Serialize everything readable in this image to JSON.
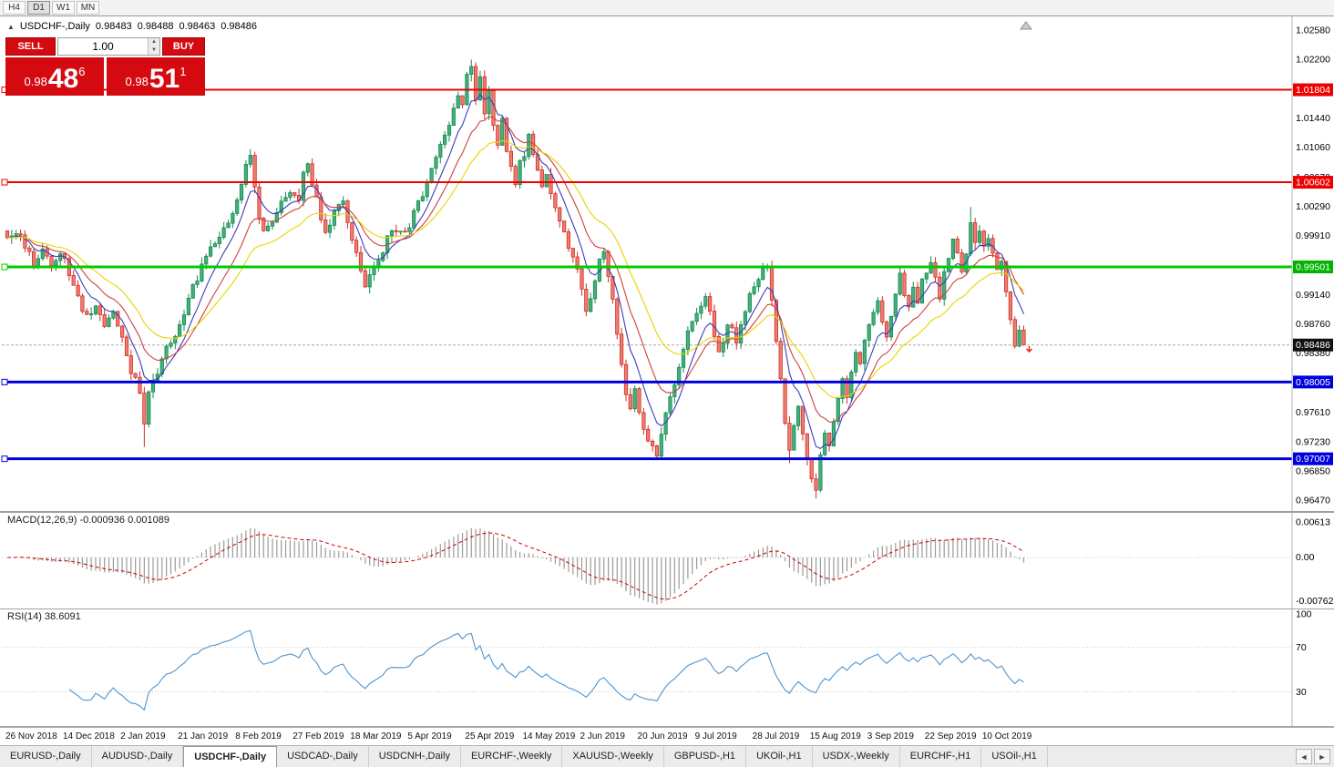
{
  "toolbar": {
    "timeframes": [
      "H4",
      "D1",
      "W1",
      "MN"
    ],
    "active": "D1"
  },
  "chart_header": {
    "collapse_icon": "▲",
    "title": "USDCHF-,Daily",
    "open": "0.98483",
    "high": "0.98488",
    "low": "0.98463",
    "close": "0.98486"
  },
  "trade_panel": {
    "sell_label": "SELL",
    "buy_label": "BUY",
    "volume": "1.00",
    "volume_up_icon": "▲",
    "volume_down_icon": "▼",
    "sell_price_prefix": "0.98",
    "sell_price_big": "48",
    "sell_price_sup": "6",
    "buy_price_prefix": "0.98",
    "buy_price_big": "51",
    "buy_price_sup": "1"
  },
  "price_axis": {
    "ticks": [
      {
        "text": "1.02580",
        "value": 1.0258
      },
      {
        "text": "1.02200",
        "value": 1.022
      },
      {
        "text": "1.01440",
        "value": 1.0144
      },
      {
        "text": "1.01060",
        "value": 1.0106
      },
      {
        "text": "1.00670",
        "value": 1.0067
      },
      {
        "text": "1.00290",
        "value": 1.0029
      },
      {
        "text": "0.99910",
        "value": 0.9991
      },
      {
        "text": "0.99140",
        "value": 0.9914
      },
      {
        "text": "0.98760",
        "value": 0.9876
      },
      {
        "text": "0.98380",
        "value": 0.9838
      },
      {
        "text": "0.97610",
        "value": 0.9761
      },
      {
        "text": "0.97230",
        "value": 0.9723
      },
      {
        "text": "0.96850",
        "value": 0.9685
      },
      {
        "text": "0.96470",
        "value": 0.9647
      }
    ],
    "badges": [
      {
        "text": "1.01804",
        "value": 1.01804,
        "bg": "#ee0000",
        "fg": "#ffffff"
      },
      {
        "text": "1.00602",
        "value": 1.00602,
        "bg": "#ee0000",
        "fg": "#ffffff"
      },
      {
        "text": "0.99501",
        "value": 0.99501,
        "bg": "#00b400",
        "fg": "#ffffff"
      },
      {
        "text": "0.98486",
        "value": 0.98486,
        "bg": "#111111",
        "fg": "#ffffff"
      },
      {
        "text": "0.98005",
        "value": 0.98005,
        "bg": "#0000dd",
        "fg": "#ffffff"
      },
      {
        "text": "0.97007",
        "value": 0.97007,
        "bg": "#0000dd",
        "fg": "#ffffff"
      }
    ]
  },
  "levels": [
    {
      "price": 1.01804,
      "color": "#ee0000",
      "width": 2
    },
    {
      "price": 1.00602,
      "color": "#ee0000",
      "width": 2
    },
    {
      "price": 0.99501,
      "color": "#00cc00",
      "width": 3
    },
    {
      "price": 0.98005,
      "color": "#0000dd",
      "width": 3
    },
    {
      "price": 0.97007,
      "color": "#0000dd",
      "width": 3
    }
  ],
  "current_price_line": {
    "value": 0.98486,
    "color": "#aaaaaa"
  },
  "trade_marker": {
    "price": 0.984,
    "color": "#ee2222"
  },
  "indicators": {
    "macd": {
      "label": "MACD(12,26,9) -0.000936 0.001089",
      "scale_top": "0.00613",
      "scale_top_value": 0.00613,
      "scale_zero": "0.00",
      "scale_bottom": "-0.00762",
      "scale_bottom_value": -0.00762
    },
    "rsi": {
      "label": "RSI(14) 38.6091",
      "levels": [
        {
          "text": "100",
          "value": 100
        },
        {
          "text": "70",
          "value": 70
        },
        {
          "text": "30",
          "value": 30
        }
      ]
    }
  },
  "tabs": {
    "items": [
      "EURUSD-,Daily",
      "AUDUSD-,Daily",
      "USDCHF-,Daily",
      "USDCAD-,Daily",
      "USDCNH-,Daily",
      "EURCHF-,Weekly",
      "XAUUSD-,Weekly",
      "GBPUSD-,H1",
      "UKOil-,H1",
      "USDX-,Weekly",
      "EURCHF-,H1",
      "USOil-,H1"
    ],
    "active": "USDCHF-,Daily",
    "scroll_left": "◄",
    "scroll_right": "►"
  },
  "chart_data": {
    "type": "candlestick",
    "title": "USDCHF-,Daily",
    "bars": 231,
    "last_close": 0.98486,
    "y_range": [
      0.9647,
      1.0258
    ],
    "x_labels": [
      "26 Nov 2018",
      "14 Dec 2018",
      "2 Jan 2019",
      "21 Jan 2019",
      "8 Feb 2019",
      "27 Feb 2019",
      "18 Mar 2019",
      "5 Apr 2019",
      "25 Apr 2019",
      "14 May 2019",
      "2 Jun 2019",
      "20 Jun 2019",
      "9 Jul 2019",
      "28 Jul 2019",
      "15 Aug 2019",
      "3 Sep 2019",
      "22 Sep 2019",
      "10 Oct 2019"
    ],
    "x_label_interval": 13,
    "colors": {
      "up": {
        "fill": "#44b07c",
        "border": "#168a52"
      },
      "down": {
        "fill": "#ee7d72",
        "border": "#cf2f25"
      }
    },
    "close_waypoints": [
      [
        0,
        0.9988
      ],
      [
        2,
        0.9996
      ],
      [
        4,
        0.9975
      ],
      [
        6,
        0.9956
      ],
      [
        8,
        0.997
      ],
      [
        10,
        0.9952
      ],
      [
        12,
        0.9966
      ],
      [
        14,
        0.9944
      ],
      [
        16,
        0.9908
      ],
      [
        18,
        0.9884
      ],
      [
        20,
        0.9904
      ],
      [
        22,
        0.9874
      ],
      [
        24,
        0.9892
      ],
      [
        26,
        0.9858
      ],
      [
        28,
        0.9812
      ],
      [
        30,
        0.9792
      ],
      [
        31,
        0.9748
      ],
      [
        32,
        0.979
      ],
      [
        34,
        0.9816
      ],
      [
        36,
        0.9842
      ],
      [
        38,
        0.9864
      ],
      [
        40,
        0.989
      ],
      [
        42,
        0.9922
      ],
      [
        44,
        0.9952
      ],
      [
        46,
        0.9976
      ],
      [
        48,
        0.9992
      ],
      [
        50,
        1.0006
      ],
      [
        52,
        1.0042
      ],
      [
        54,
        1.008
      ],
      [
        55,
        1.0096
      ],
      [
        56,
        1.0058
      ],
      [
        57,
        1.0018
      ],
      [
        58,
        0.9998
      ],
      [
        60,
        1.0008
      ],
      [
        62,
        1.0034
      ],
      [
        64,
        1.005
      ],
      [
        66,
        1.0036
      ],
      [
        67,
        1.0072
      ],
      [
        68,
        1.0086
      ],
      [
        69,
        1.0058
      ],
      [
        70,
        1.004
      ],
      [
        71,
        1.001
      ],
      [
        72,
        0.9994
      ],
      [
        74,
        1.0018
      ],
      [
        76,
        1.0036
      ],
      [
        77,
        1.001
      ],
      [
        78,
        0.9986
      ],
      [
        80,
        0.9946
      ],
      [
        81,
        0.9924
      ],
      [
        82,
        0.994
      ],
      [
        84,
        0.9958
      ],
      [
        86,
        0.9986
      ],
      [
        88,
        1.0002
      ],
      [
        90,
        0.999
      ],
      [
        92,
        1.0018
      ],
      [
        94,
        1.0042
      ],
      [
        96,
        1.0074
      ],
      [
        98,
        1.0105
      ],
      [
        100,
        1.014
      ],
      [
        102,
        1.0175
      ],
      [
        103,
        1.0162
      ],
      [
        104,
        1.0198
      ],
      [
        105,
        1.021
      ],
      [
        106,
        1.0168
      ],
      [
        107,
        1.0196
      ],
      [
        108,
        1.0152
      ],
      [
        109,
        1.0178
      ],
      [
        110,
        1.0132
      ],
      [
        111,
        1.011
      ],
      [
        112,
        1.014
      ],
      [
        113,
        1.0095
      ],
      [
        114,
        1.0078
      ],
      [
        115,
        1.0058
      ],
      [
        116,
        1.0088
      ],
      [
        117,
        1.0098
      ],
      [
        118,
        1.0122
      ],
      [
        119,
        1.0096
      ],
      [
        120,
        1.0072
      ],
      [
        121,
        1.0055
      ],
      [
        122,
        1.0068
      ],
      [
        124,
        1.0028
      ],
      [
        126,
        0.9992
      ],
      [
        128,
        0.9962
      ],
      [
        130,
        0.9924
      ],
      [
        131,
        0.9888
      ],
      [
        132,
        0.9908
      ],
      [
        133,
        0.9932
      ],
      [
        134,
        0.9958
      ],
      [
        135,
        0.9972
      ],
      [
        136,
        0.9938
      ],
      [
        137,
        0.9908
      ],
      [
        138,
        0.9868
      ],
      [
        139,
        0.9826
      ],
      [
        140,
        0.9788
      ],
      [
        141,
        0.9768
      ],
      [
        142,
        0.9792
      ],
      [
        143,
        0.9762
      ],
      [
        144,
        0.9738
      ],
      [
        145,
        0.9722
      ],
      [
        147,
        0.9706
      ],
      [
        148,
        0.9734
      ],
      [
        150,
        0.9776
      ],
      [
        152,
        0.9816
      ],
      [
        154,
        0.9868
      ],
      [
        156,
        0.9888
      ],
      [
        157,
        0.9905
      ],
      [
        158,
        0.9912
      ],
      [
        159,
        0.9888
      ],
      [
        160,
        0.9862
      ],
      [
        161,
        0.984
      ],
      [
        162,
        0.9852
      ],
      [
        163,
        0.9878
      ],
      [
        164,
        0.9868
      ],
      [
        165,
        0.985
      ],
      [
        166,
        0.9872
      ],
      [
        167,
        0.9895
      ],
      [
        168,
        0.991
      ],
      [
        169,
        0.9922
      ],
      [
        170,
        0.9935
      ],
      [
        171,
        0.9945
      ],
      [
        172,
        0.9952
      ],
      [
        173,
        0.9902
      ],
      [
        174,
        0.985
      ],
      [
        175,
        0.98
      ],
      [
        176,
        0.9748
      ],
      [
        177,
        0.9708
      ],
      [
        178,
        0.974
      ],
      [
        179,
        0.9766
      ],
      [
        180,
        0.9734
      ],
      [
        181,
        0.97
      ],
      [
        182,
        0.9672
      ],
      [
        183,
        0.966
      ],
      [
        184,
        0.9712
      ],
      [
        185,
        0.9735
      ],
      [
        186,
        0.9718
      ],
      [
        187,
        0.9748
      ],
      [
        188,
        0.9775
      ],
      [
        189,
        0.9802
      ],
      [
        190,
        0.9785
      ],
      [
        191,
        0.9815
      ],
      [
        192,
        0.9842
      ],
      [
        193,
        0.9825
      ],
      [
        194,
        0.9855
      ],
      [
        195,
        0.9875
      ],
      [
        196,
        0.989
      ],
      [
        197,
        0.991
      ],
      [
        198,
        0.9884
      ],
      [
        199,
        0.9864
      ],
      [
        200,
        0.9892
      ],
      [
        201,
        0.9918
      ],
      [
        202,
        0.9938
      ],
      [
        203,
        0.9912
      ],
      [
        204,
        0.9892
      ],
      [
        205,
        0.9922
      ],
      [
        206,
        0.9908
      ],
      [
        207,
        0.9932
      ],
      [
        208,
        0.9938
      ],
      [
        209,
        0.9952
      ],
      [
        210,
        0.9932
      ],
      [
        211,
        0.9912
      ],
      [
        212,
        0.9938
      ],
      [
        213,
        0.9962
      ],
      [
        214,
        0.9988
      ],
      [
        215,
        0.9968
      ],
      [
        216,
        0.9945
      ],
      [
        217,
        0.9972
      ],
      [
        218,
        1.0008
      ],
      [
        219,
        0.9985
      ],
      [
        220,
        0.9992
      ],
      [
        221,
        0.9975
      ],
      [
        222,
        0.9988
      ],
      [
        223,
        0.997
      ],
      [
        224,
        0.9945
      ],
      [
        225,
        0.9958
      ],
      [
        226,
        0.992
      ],
      [
        227,
        0.988
      ],
      [
        228,
        0.9852
      ],
      [
        229,
        0.9868
      ],
      [
        230,
        0.98486
      ]
    ],
    "extreme_points": {
      "highs": [
        [
          55,
          1.0102
        ],
        [
          105,
          1.0218
        ],
        [
          218,
          1.0028
        ]
      ],
      "lows": [
        [
          31,
          0.9716
        ],
        [
          147,
          0.97
        ],
        [
          177,
          0.9695
        ],
        [
          183,
          0.9649
        ]
      ]
    },
    "moving_averages": [
      {
        "name": "fast",
        "period": 7,
        "color": "#3d3dbb"
      },
      {
        "name": "mid",
        "period": 14,
        "color": "#d23f3f"
      },
      {
        "name": "slow",
        "period": 25,
        "color": "#e8d400"
      }
    ],
    "macd": {
      "fast": 12,
      "slow": 26,
      "signal": 9,
      "histogram_color": "#9a9a9a",
      "signal_color": "#cc0000"
    },
    "rsi": {
      "period": 14,
      "color": "#4f94cd"
    }
  }
}
